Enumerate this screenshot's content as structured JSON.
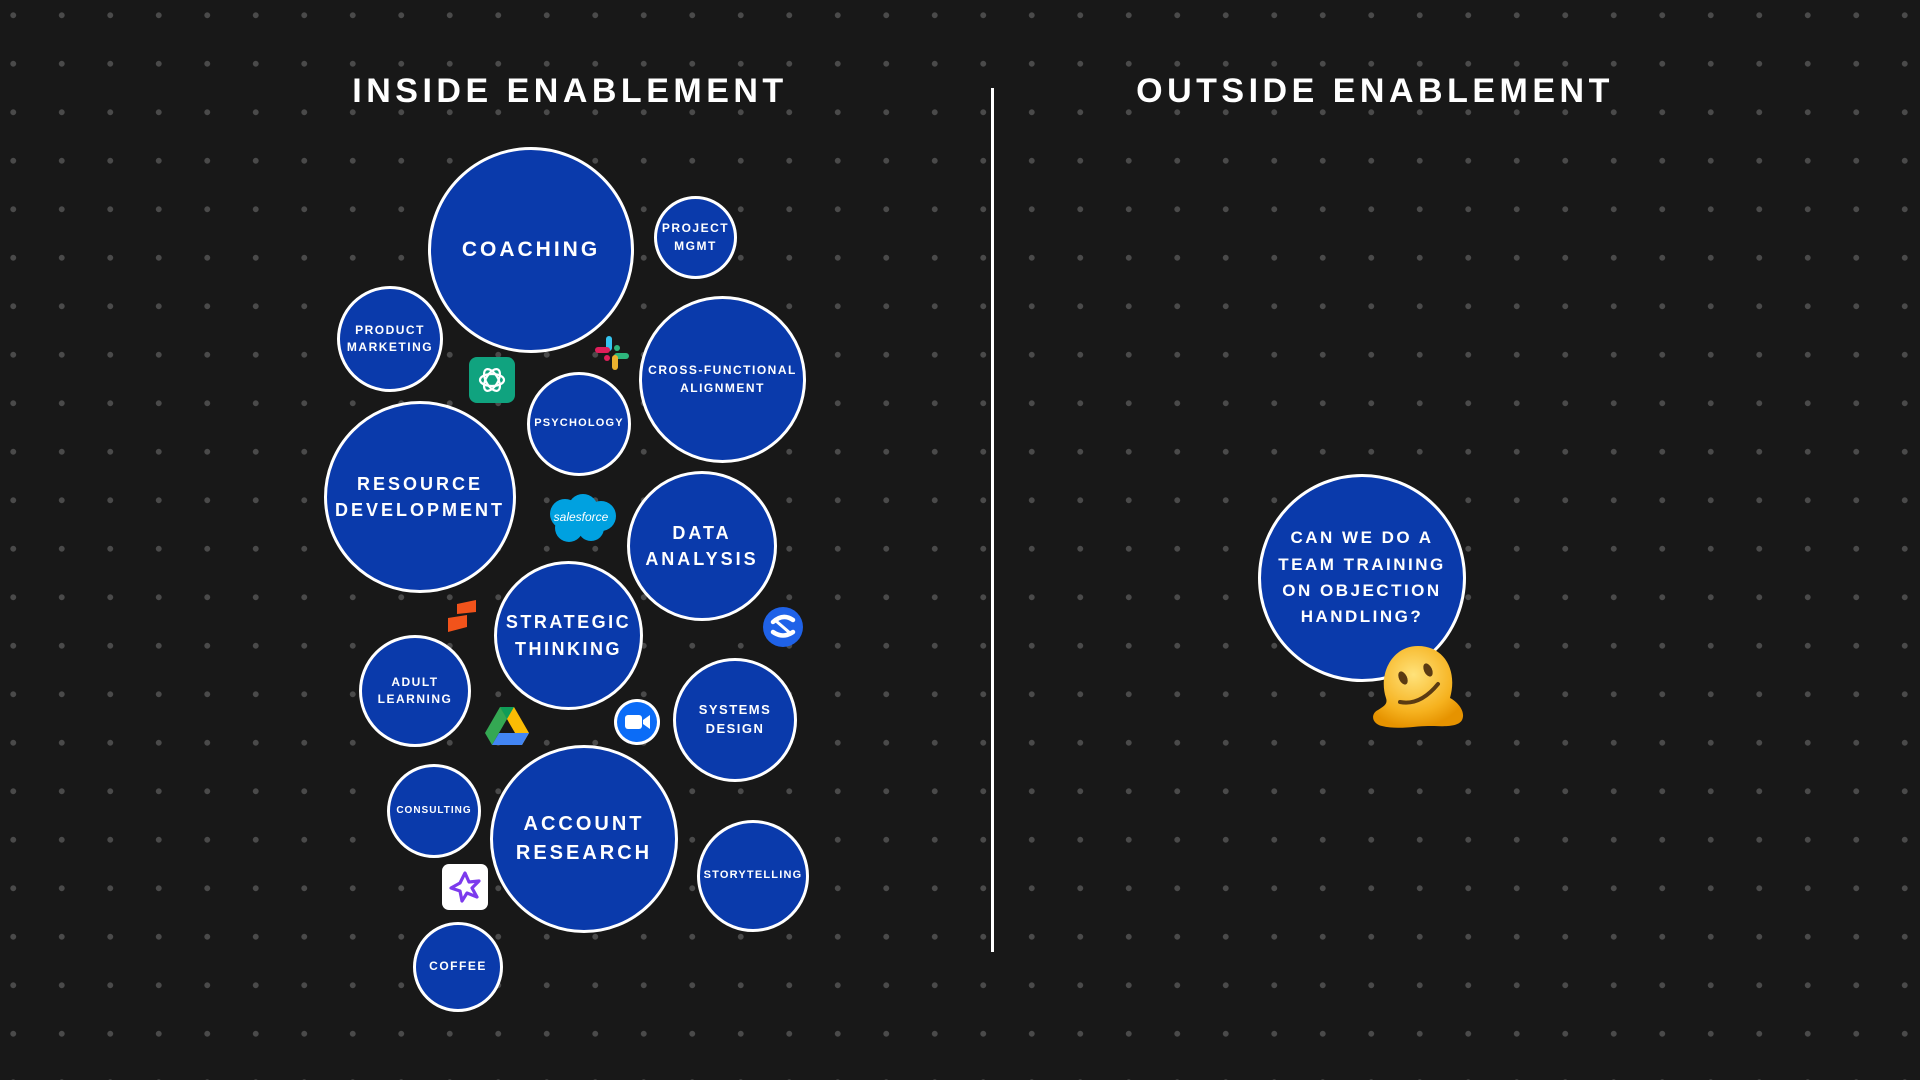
{
  "headings": {
    "inside": "INSIDE ENABLEMENT",
    "outside": "OUTSIDE ENABLEMENT"
  },
  "colors": {
    "background": "#181818",
    "dot": "#4a4a4a",
    "bubble_fill": "#0a3aab",
    "bubble_border": "#ffffff",
    "divider": "#ffffff"
  },
  "inside_bubbles": {
    "coaching": "COACHING",
    "project_mgmt": "PROJECT\nMGMT",
    "product_marketing": "PRODUCT\nMARKETING",
    "cross_functional": "CROSS-FUNCTIONAL\nALIGNMENT",
    "psychology": "PSYCHOLOGY",
    "resource_development": "RESOURCE\nDEVELOPMENT",
    "data_analysis": "DATA\nANALYSIS",
    "strategic_thinking": "STRATEGIC\nTHINKING",
    "adult_learning": "ADULT\nLEARNING",
    "systems_design": "SYSTEMS\nDESIGN",
    "consulting": "CONSULTING",
    "account_research": "ACCOUNT\nRESEARCH",
    "storytelling": "STORYTELLING",
    "coffee": "COFFEE"
  },
  "outside_bubbles": {
    "objection_question": "CAN WE DO A\nTEAM TRAINING\nON OBJECTION\nHANDLING?"
  },
  "logos": {
    "salesforce": "salesforce"
  },
  "icons": [
    "chatgpt-icon",
    "slack-icon",
    "salesforce-icon",
    "confluence-icon",
    "orange-bookmark-icon",
    "google-drive-icon",
    "zoom-icon",
    "sparkle-app-icon",
    "melting-face-emoji"
  ]
}
